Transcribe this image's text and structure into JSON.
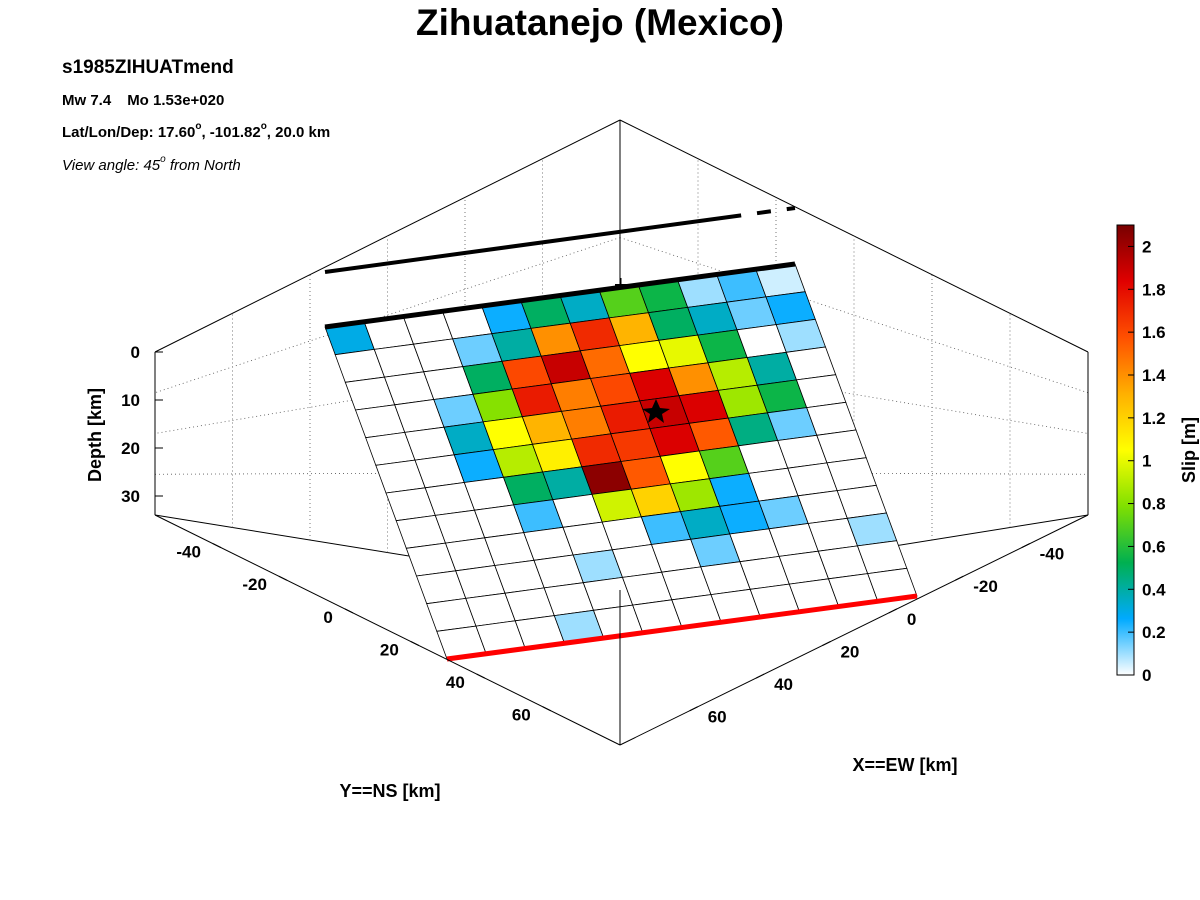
{
  "header": {
    "title": "Zihuatanejo (Mexico)",
    "event_name": "s1985ZIHUATmend",
    "mw": "Mw 7.4",
    "mo": "Mo 1.53e+020",
    "loc_prefix": "Lat/Lon/Dep: 17.60",
    "loc_lon": ", -101.82",
    "loc_dep": ", 20.0 km",
    "degree_symbol": "o",
    "view_prefix": "View angle:  45",
    "view_suffix": " from North"
  },
  "chart_data": {
    "type": "heatmap",
    "projection": "3d-fault-plane",
    "xlabel": "X==EW [km]",
    "ylabel": "Y==NS [km]",
    "zlabel": "Depth [km]",
    "x_ticks": [
      "-40",
      "-20",
      "0",
      "20",
      "40",
      "60"
    ],
    "y_ticks": [
      "-40",
      "-20",
      "0",
      "20",
      "40",
      "60"
    ],
    "z_ticks": [
      "0",
      "10",
      "20",
      "30"
    ],
    "xlim": [
      -50,
      70
    ],
    "ylim": [
      -50,
      70
    ],
    "zlim": [
      0,
      35
    ],
    "grid": true,
    "colorbar": {
      "label": "Slip [m]",
      "min": 0,
      "max": 2.1,
      "ticks": [
        "0",
        "0.2",
        "0.4",
        "0.6",
        "0.8",
        "1",
        "1.2",
        "1.4",
        "1.6",
        "1.8",
        "2"
      ],
      "colormap": [
        "#ffffff",
        "#00aaff",
        "#00b050",
        "#80e000",
        "#ffff00",
        "#ffb000",
        "#ff5000",
        "#e00000",
        "#780000"
      ]
    },
    "slip_grid": [
      [
        0.3,
        0,
        0,
        0,
        0.25,
        0.5,
        0.35,
        0.7,
        0.55,
        0.1,
        0.2,
        0.05
      ],
      [
        0,
        0,
        0,
        0.15,
        0.4,
        1.4,
        1.7,
        1.3,
        0.5,
        0.35,
        0.15,
        0.25
      ],
      [
        0,
        0,
        0,
        0.5,
        1.6,
        1.9,
        1.5,
        1.05,
        1.0,
        0.55,
        0,
        0.1
      ],
      [
        0,
        0,
        0.15,
        0.8,
        1.75,
        1.45,
        1.6,
        1.85,
        1.4,
        0.9,
        0.4,
        0
      ],
      [
        0,
        0,
        0.35,
        1.05,
        1.3,
        1.45,
        1.75,
        1.9,
        1.85,
        0.85,
        0.55,
        0
      ],
      [
        0,
        0,
        0.25,
        0.9,
        1.1,
        1.7,
        1.65,
        1.85,
        1.55,
        0.45,
        0.15,
        0
      ],
      [
        0,
        0,
        0,
        0.5,
        0.4,
        2.05,
        1.55,
        1.05,
        0.7,
        0,
        0,
        0
      ],
      [
        0,
        0,
        0,
        0.2,
        0,
        0.95,
        1.2,
        0.85,
        0.25,
        0,
        0,
        0
      ],
      [
        0,
        0,
        0,
        0,
        0,
        0,
        0.2,
        0.35,
        0.25,
        0.15,
        0,
        0
      ],
      [
        0,
        0,
        0,
        0,
        0.1,
        0,
        0,
        0.15,
        0,
        0,
        0,
        0.1
      ],
      [
        0,
        0,
        0,
        0,
        0,
        0,
        0,
        0,
        0,
        0,
        0,
        0
      ],
      [
        0,
        0,
        0,
        0.1,
        0,
        0,
        0,
        0,
        0,
        0,
        0,
        0
      ]
    ],
    "hypocenter": {
      "row": 3,
      "col": 6.5
    },
    "fault_top_color": "#000000",
    "fault_bottom_color": "#ff0000"
  }
}
